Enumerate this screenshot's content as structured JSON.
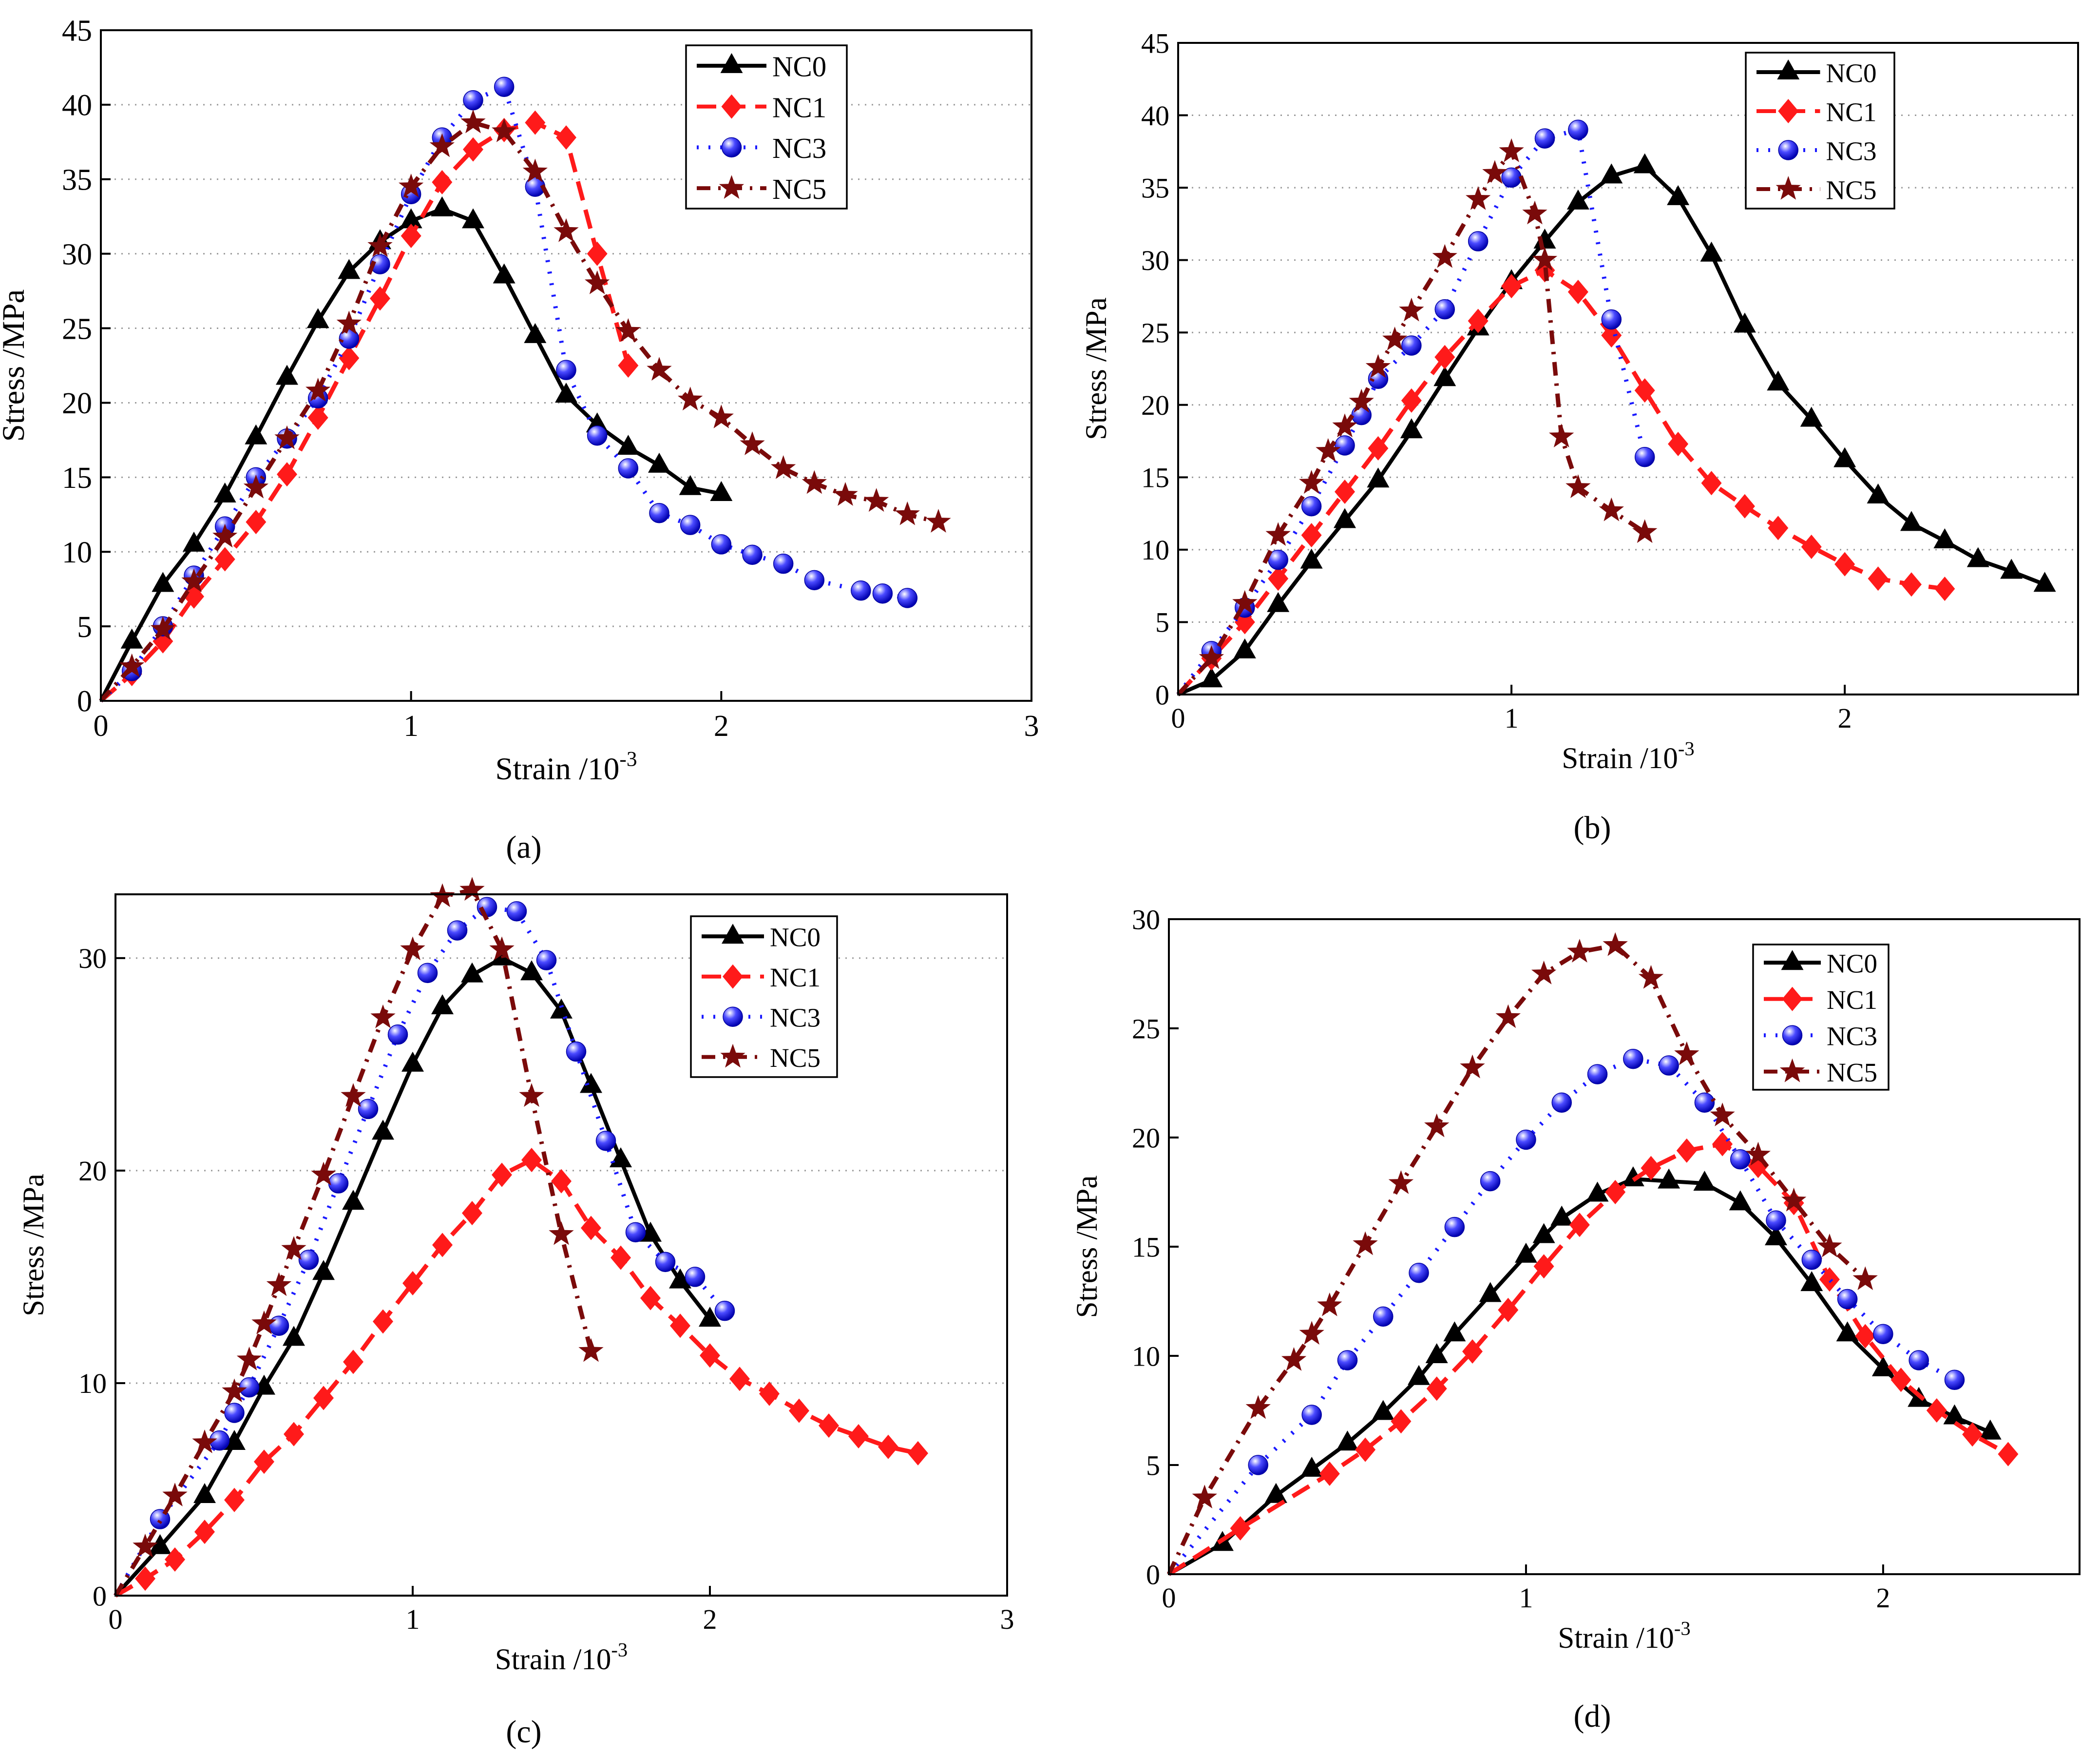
{
  "colors": {
    "NC0": "#000000",
    "NC1": "#ff1a1a",
    "NC3": "#1a1aff",
    "NC5": "#7a0a0a"
  },
  "chart_data": [
    {
      "type": "line",
      "panel": "(a)",
      "xlabel": "Strain",
      "xunit": "/10",
      "xexp": "-3",
      "ylabel": "Stress /MPa",
      "xlim": [
        0,
        3
      ],
      "ylim": [
        0,
        45
      ],
      "xticks": [
        0,
        1,
        2,
        3
      ],
      "yticks": [
        0,
        5,
        10,
        15,
        20,
        25,
        30,
        35,
        40,
        45
      ],
      "grid": true,
      "legend_position": "top-right",
      "series": [
        {
          "name": "NC0",
          "marker": "triangle",
          "style": "solid",
          "x": [
            0,
            0.1,
            0.2,
            0.3,
            0.4,
            0.5,
            0.6,
            0.7,
            0.8,
            0.9,
            1.0,
            1.1,
            1.2,
            1.3,
            1.4,
            1.5,
            1.6,
            1.7,
            1.8,
            1.9,
            2.0
          ],
          "y": [
            0,
            4,
            7.8,
            10.5,
            13.8,
            17.7,
            21.7,
            25.5,
            28.8,
            30.8,
            32.2,
            33,
            32.2,
            28.5,
            24.5,
            20.5,
            18.5,
            17,
            15.8,
            14.3,
            13.9
          ]
        },
        {
          "name": "NC1",
          "marker": "diamond",
          "style": "dash",
          "x": [
            0,
            0.1,
            0.2,
            0.3,
            0.4,
            0.5,
            0.6,
            0.7,
            0.8,
            0.9,
            1.0,
            1.1,
            1.2,
            1.3,
            1.4,
            1.5,
            1.6,
            1.7
          ],
          "y": [
            0,
            1.8,
            4,
            7,
            9.5,
            12,
            15.2,
            19,
            23,
            27,
            31.2,
            34.8,
            37,
            38.3,
            38.8,
            37.8,
            30,
            22.5
          ]
        },
        {
          "name": "NC3",
          "marker": "sphere",
          "style": "dot",
          "x": [
            0,
            0.1,
            0.2,
            0.3,
            0.4,
            0.5,
            0.6,
            0.7,
            0.8,
            0.9,
            1.0,
            1.1,
            1.2,
            1.3,
            1.4,
            1.5,
            1.6,
            1.7,
            1.8,
            1.9,
            2.0,
            2.1,
            2.2,
            2.3,
            2.45,
            2.52,
            2.6
          ],
          "y": [
            0,
            2,
            5,
            8.4,
            11.7,
            15,
            17.6,
            20.3,
            24.3,
            29.3,
            34,
            37.8,
            40.3,
            41.2,
            34.5,
            22.2,
            17.8,
            15.6,
            12.6,
            11.8,
            10.5,
            9.8,
            9.2,
            8.1,
            7.4,
            7.2,
            6.9
          ]
        },
        {
          "name": "NC5",
          "marker": "star",
          "style": "dashdot",
          "x": [
            0,
            0.1,
            0.2,
            0.3,
            0.4,
            0.5,
            0.6,
            0.7,
            0.8,
            0.9,
            1.0,
            1.1,
            1.2,
            1.3,
            1.4,
            1.5,
            1.6,
            1.7,
            1.8,
            1.9,
            2.0,
            2.1,
            2.2,
            2.3,
            2.4,
            2.5,
            2.6,
            2.7
          ],
          "y": [
            0,
            2.3,
            4.8,
            8,
            11,
            14.3,
            17.6,
            20.8,
            25.3,
            30.5,
            34.5,
            37.2,
            38.8,
            38.2,
            35.5,
            31.5,
            28,
            24.8,
            22.2,
            20.2,
            19,
            17.2,
            15.6,
            14.6,
            13.8,
            13.4,
            12.5,
            12
          ]
        }
      ]
    },
    {
      "type": "line",
      "panel": "(b)",
      "xlabel": "Strain",
      "xunit": "/10",
      "xexp": "-3",
      "ylabel": "Stress /MPa",
      "xlim": [
        0,
        2.7
      ],
      "ylim": [
        0,
        45
      ],
      "xticks": [
        0,
        1,
        2
      ],
      "yticks": [
        0,
        5,
        10,
        15,
        20,
        25,
        30,
        35,
        40,
        45
      ],
      "grid": true,
      "legend_position": "top-right",
      "series": [
        {
          "name": "NC0",
          "marker": "triangle",
          "style": "solid",
          "x": [
            0,
            0.1,
            0.2,
            0.3,
            0.4,
            0.5,
            0.6,
            0.7,
            0.8,
            0.9,
            1.0,
            1.1,
            1.2,
            1.3,
            1.4,
            1.5,
            1.6,
            1.7,
            1.8,
            1.9,
            2.0,
            2.1,
            2.2,
            2.3,
            2.4,
            2.5,
            2.6
          ],
          "y": [
            0,
            1,
            3,
            6.2,
            9.2,
            12,
            14.8,
            18.2,
            21.8,
            25.3,
            28.5,
            31.3,
            34,
            35.8,
            36.5,
            34.3,
            30.4,
            25.5,
            21.5,
            19,
            16.2,
            13.7,
            11.8,
            10.6,
            9.3,
            8.5,
            7.6
          ]
        },
        {
          "name": "NC1",
          "marker": "diamond",
          "style": "dash",
          "x": [
            0,
            0.1,
            0.2,
            0.3,
            0.4,
            0.5,
            0.6,
            0.7,
            0.8,
            0.9,
            1.0,
            1.1,
            1.2,
            1.3,
            1.4,
            1.5,
            1.6,
            1.7,
            1.8,
            1.9,
            2.0,
            2.1,
            2.2,
            2.3
          ],
          "y": [
            0,
            2.5,
            5,
            8,
            11,
            14,
            17,
            20.3,
            23.3,
            25.8,
            28.2,
            29.3,
            27.8,
            24.8,
            21,
            17.3,
            14.6,
            13,
            11.5,
            10.2,
            9,
            8,
            7.6,
            7.3
          ]
        },
        {
          "name": "NC3",
          "marker": "sphere",
          "style": "dot",
          "x": [
            0,
            0.1,
            0.2,
            0.3,
            0.4,
            0.5,
            0.55,
            0.6,
            0.7,
            0.8,
            0.9,
            1.0,
            1.1,
            1.2,
            1.3,
            1.4
          ],
          "y": [
            0,
            3,
            6,
            9.3,
            13,
            17.2,
            19.3,
            21.8,
            24.1,
            26.6,
            31.3,
            35.7,
            38.4,
            39,
            25.9,
            16.4
          ]
        },
        {
          "name": "NC5",
          "marker": "star",
          "style": "dashdot",
          "x": [
            0,
            0.1,
            0.2,
            0.3,
            0.4,
            0.45,
            0.5,
            0.55,
            0.6,
            0.65,
            0.7,
            0.8,
            0.9,
            0.95,
            1.0,
            1.07,
            1.1,
            1.15,
            1.2,
            1.3,
            1.4
          ],
          "y": [
            0,
            2.5,
            6.3,
            11,
            14.6,
            16.8,
            18.5,
            20.2,
            22.6,
            24.5,
            26.5,
            30.2,
            34.2,
            36,
            37.5,
            33.2,
            30,
            17.8,
            14.3,
            12.7,
            11.2
          ]
        }
      ]
    },
    {
      "type": "line",
      "panel": "(c)",
      "xlabel": "Strain",
      "xunit": "/10",
      "xexp": "-3",
      "ylabel": "Stress /MPa",
      "xlim": [
        0,
        3
      ],
      "ylim": [
        0,
        33
      ],
      "xticks": [
        0,
        1,
        2,
        3
      ],
      "yticks": [
        0,
        10,
        20,
        30
      ],
      "grid": true,
      "legend_position": "top-right",
      "series": [
        {
          "name": "NC0",
          "marker": "triangle",
          "style": "solid",
          "x": [
            0,
            0.15,
            0.3,
            0.4,
            0.5,
            0.6,
            0.7,
            0.8,
            0.9,
            1.0,
            1.1,
            1.2,
            1.3,
            1.4,
            1.5,
            1.6,
            1.7,
            1.8,
            1.9,
            2.0
          ],
          "y": [
            0,
            2.3,
            4.7,
            7.2,
            9.8,
            12.1,
            15.2,
            18.5,
            21.8,
            25,
            27.7,
            29.2,
            30,
            29.3,
            27.5,
            24,
            20.5,
            17,
            14.8,
            13
          ]
        },
        {
          "name": "NC1",
          "marker": "diamond",
          "style": "dash",
          "x": [
            0,
            0.1,
            0.2,
            0.3,
            0.4,
            0.5,
            0.6,
            0.7,
            0.8,
            0.9,
            1.0,
            1.1,
            1.2,
            1.3,
            1.4,
            1.5,
            1.6,
            1.7,
            1.8,
            1.9,
            2.0,
            2.1,
            2.2,
            2.3,
            2.4,
            2.5,
            2.6,
            2.7
          ],
          "y": [
            0,
            0.8,
            1.7,
            3,
            4.5,
            6.3,
            7.6,
            9.3,
            11,
            12.9,
            14.7,
            16.5,
            18,
            19.8,
            20.5,
            19.5,
            17.3,
            15.9,
            14,
            12.7,
            11.3,
            10.2,
            9.5,
            8.7,
            8,
            7.5,
            7,
            6.7
          ]
        },
        {
          "name": "NC3",
          "marker": "sphere",
          "style": "dot",
          "x": [
            0,
            0.15,
            0.35,
            0.4,
            0.45,
            0.55,
            0.65,
            0.75,
            0.85,
            0.95,
            1.05,
            1.15,
            1.25,
            1.35,
            1.45,
            1.55,
            1.65,
            1.75,
            1.85,
            1.95,
            2.05
          ],
          "y": [
            0,
            3.6,
            7.3,
            8.6,
            9.8,
            12.7,
            15.8,
            19.4,
            22.9,
            26.4,
            29.3,
            31.3,
            32.4,
            32.2,
            29.9,
            25.6,
            21.4,
            17.1,
            15.7,
            15,
            13.4
          ]
        },
        {
          "name": "NC5",
          "marker": "star",
          "style": "dashdot",
          "x": [
            0,
            0.1,
            0.2,
            0.3,
            0.4,
            0.45,
            0.5,
            0.55,
            0.6,
            0.7,
            0.8,
            0.9,
            1.0,
            1.1,
            1.2,
            1.3,
            1.4,
            1.5,
            1.6
          ],
          "y": [
            0,
            2.3,
            4.7,
            7.2,
            9.6,
            11.1,
            12.8,
            14.6,
            16.3,
            19.8,
            23.5,
            27.2,
            30.4,
            32.9,
            33.2,
            30.4,
            23.5,
            17,
            11.5
          ]
        }
      ]
    },
    {
      "type": "line",
      "panel": "(d)",
      "xlabel": "Strain",
      "xunit": "/10",
      "xexp": "-3",
      "ylabel": "Stress /MPa",
      "xlim": [
        0,
        2.55
      ],
      "ylim": [
        0,
        30
      ],
      "xticks": [
        0,
        1,
        2
      ],
      "yticks": [
        0,
        5,
        10,
        15,
        20,
        25,
        30
      ],
      "grid": false,
      "legend_position": "top-right",
      "series": [
        {
          "name": "NC0",
          "marker": "triangle",
          "style": "solid",
          "x": [
            0,
            0.15,
            0.3,
            0.4,
            0.5,
            0.6,
            0.7,
            0.75,
            0.8,
            0.9,
            1.0,
            1.05,
            1.1,
            1.2,
            1.3,
            1.4,
            1.5,
            1.6,
            1.7,
            1.8,
            1.9,
            2.0,
            2.1,
            2.2,
            2.3
          ],
          "y": [
            0,
            1.4,
            3.6,
            4.8,
            6,
            7.4,
            9,
            10,
            11,
            12.8,
            14.6,
            15.5,
            16.3,
            17.4,
            18.1,
            18,
            17.9,
            17,
            15.4,
            13.3,
            11,
            9.4,
            8,
            7.2,
            6.5
          ]
        },
        {
          "name": "NC1",
          "marker": "diamond",
          "style": "dash",
          "x": [
            0,
            0.2,
            0.45,
            0.55,
            0.65,
            0.75,
            0.85,
            0.95,
            1.05,
            1.15,
            1.25,
            1.35,
            1.45,
            1.55,
            1.65,
            1.75,
            1.85,
            1.95,
            2.05,
            2.15,
            2.25,
            2.35
          ],
          "y": [
            0,
            2.1,
            4.6,
            5.7,
            7,
            8.5,
            10.2,
            12.1,
            14.1,
            16,
            17.5,
            18.6,
            19.4,
            19.7,
            18.7,
            17,
            13.5,
            10.9,
            8.9,
            7.5,
            6.4,
            5.5
          ]
        },
        {
          "name": "NC3",
          "marker": "sphere",
          "style": "dot",
          "x": [
            0,
            0.25,
            0.4,
            0.5,
            0.6,
            0.7,
            0.8,
            0.9,
            1.0,
            1.1,
            1.2,
            1.3,
            1.4,
            1.5,
            1.6,
            1.7,
            1.8,
            1.9,
            2.0,
            2.1,
            2.2
          ],
          "y": [
            0,
            5,
            7.3,
            9.8,
            11.8,
            13.8,
            15.9,
            18,
            19.9,
            21.6,
            22.9,
            23.6,
            23.3,
            21.6,
            19,
            16.2,
            14.4,
            12.6,
            11,
            9.8,
            8.9
          ]
        },
        {
          "name": "NC5",
          "marker": "star",
          "style": "dashdot",
          "x": [
            0,
            0.1,
            0.25,
            0.35,
            0.4,
            0.45,
            0.55,
            0.65,
            0.75,
            0.85,
            0.95,
            1.05,
            1.15,
            1.25,
            1.35,
            1.45,
            1.55,
            1.65,
            1.75,
            1.85,
            1.95
          ],
          "y": [
            0,
            3.5,
            7.6,
            9.8,
            11,
            12.3,
            15.1,
            17.9,
            20.5,
            23.2,
            25.5,
            27.5,
            28.5,
            28.8,
            27.3,
            23.8,
            21,
            19.2,
            17.1,
            15,
            13.5
          ]
        }
      ]
    }
  ]
}
